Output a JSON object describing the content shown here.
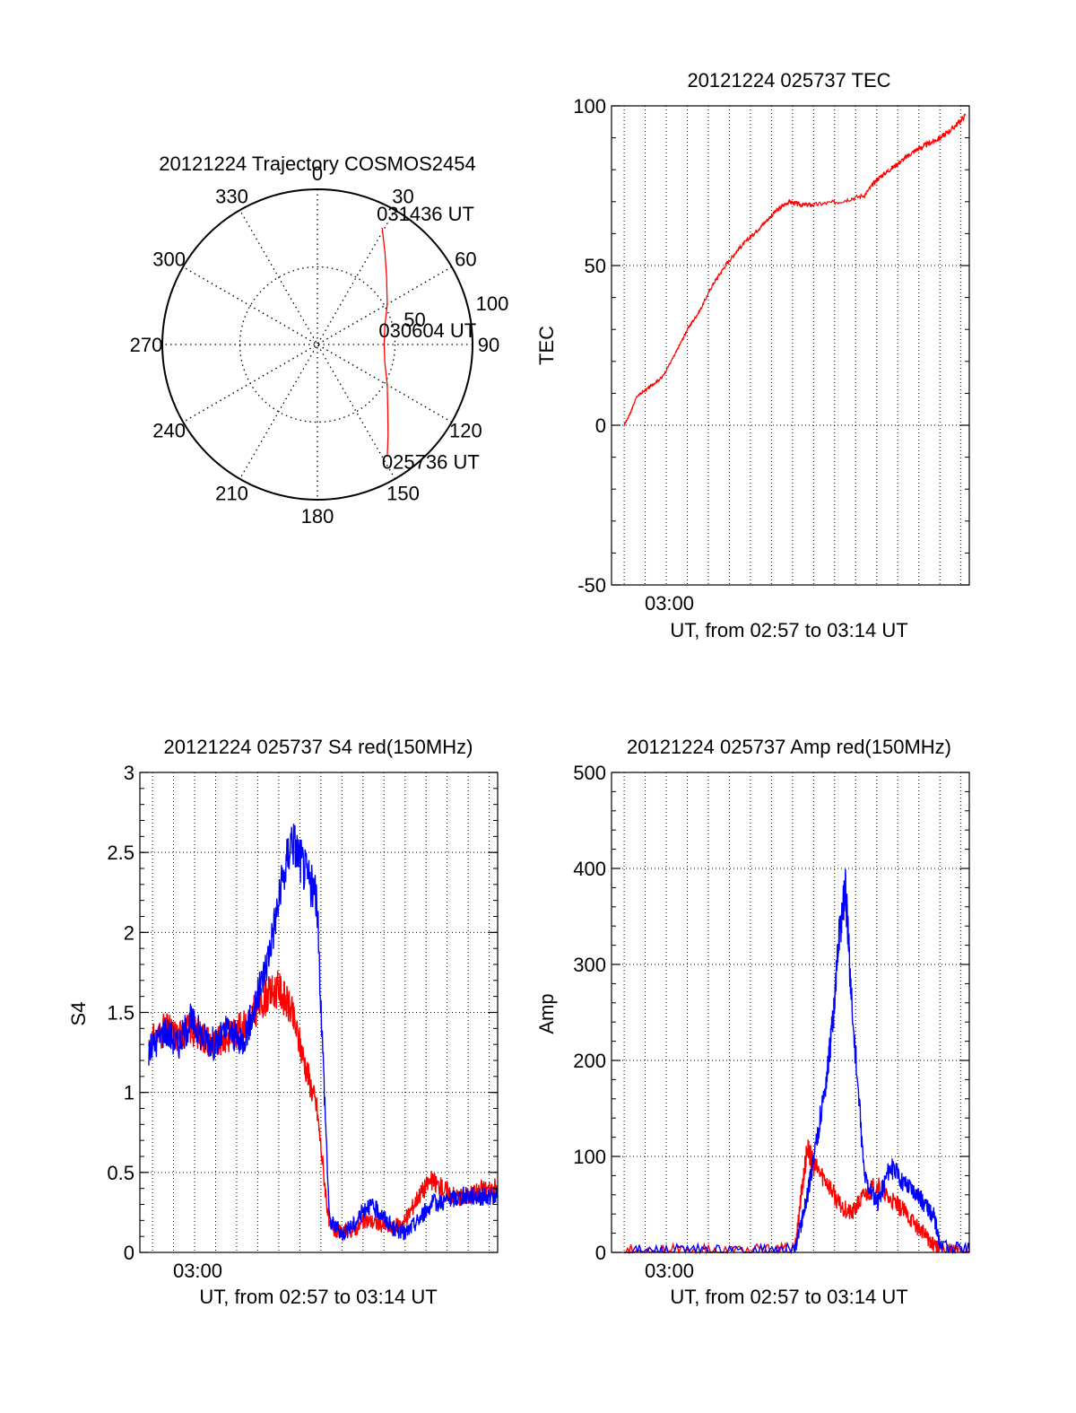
{
  "chart_data": [
    {
      "type": "polar-trajectory",
      "title": "20121224 Trajectory COSMOS2454",
      "azimuth_labels": [
        "0",
        "30",
        "60",
        "90",
        "120",
        "150",
        "180",
        "210",
        "240",
        "270",
        "300",
        "330"
      ],
      "azimuth_values": [
        0,
        30,
        60,
        90,
        120,
        150,
        180,
        210,
        240,
        270,
        300,
        330
      ],
      "radial_labels": [
        "50",
        "100"
      ],
      "radial_values": [
        50,
        100
      ],
      "radial_max": 100,
      "series": [
        {
          "color": "#ff0000",
          "points": [
            {
              "az": 148,
              "r": 85
            },
            {
              "az": 142,
              "r": 74
            },
            {
              "az": 133,
              "r": 62
            },
            {
              "az": 120,
              "r": 52
            },
            {
              "az": 105,
              "r": 45
            },
            {
              "az": 90,
              "r": 43
            },
            {
              "az": 75,
              "r": 45
            },
            {
              "az": 60,
              "r": 52
            },
            {
              "az": 45,
              "r": 63
            },
            {
              "az": 36,
              "r": 74
            },
            {
              "az": 29,
              "r": 86
            }
          ]
        }
      ],
      "annotations": [
        {
          "text": "031436 UT",
          "az": 29,
          "r": 86
        },
        {
          "text": "030604 UT",
          "az": 90,
          "r": 43
        },
        {
          "text": "025736 UT",
          "az": 148,
          "r": 85
        }
      ]
    },
    {
      "type": "line",
      "title": "20121224 025737 TEC",
      "xlabel": "UT, from 02:57 to 03:14 UT",
      "ylabel": "TEC",
      "xlim": [
        2.95,
        3.233
      ],
      "ylim": [
        -50,
        100
      ],
      "yticks": [
        -50,
        0,
        50,
        100
      ],
      "ytick_labels": [
        "-50",
        "0",
        "50",
        "100"
      ],
      "xticks": [
        3.0
      ],
      "xtick_labels": [
        "03:00"
      ],
      "grid": true,
      "series": [
        {
          "color": "#ff0000",
          "x": [
            2.96,
            2.965,
            2.97,
            2.98,
            2.99,
            3.0,
            3.01,
            3.02,
            3.03,
            3.04,
            3.05,
            3.06,
            3.07,
            3.08,
            3.09,
            3.1,
            3.11,
            3.13,
            3.15,
            3.16,
            3.17,
            3.18,
            3.19,
            3.2,
            3.21,
            3.22,
            3.23
          ],
          "y": [
            0,
            4,
            9,
            12,
            15,
            22,
            30,
            36,
            44,
            50,
            55,
            59,
            63,
            67,
            70,
            69,
            69,
            70,
            72,
            77,
            80,
            83,
            86,
            88,
            90,
            93,
            97
          ]
        }
      ]
    },
    {
      "type": "line",
      "title": "20121224 025737 S4 red(150MHz)",
      "xlabel": "UT, from 02:57 to 03:14 UT",
      "ylabel": "S4",
      "xlim": [
        2.95,
        3.233
      ],
      "ylim": [
        0,
        3
      ],
      "yticks": [
        0,
        0.5,
        1,
        1.5,
        2,
        2.5,
        3
      ],
      "ytick_labels": [
        "0",
        "0.5",
        "1",
        "1.5",
        "2",
        "2.5",
        "3"
      ],
      "xticks": [
        3.0
      ],
      "xtick_labels": [
        "03:00"
      ],
      "grid": true,
      "series": [
        {
          "color": "#ff0000",
          "x": [
            2.957,
            2.97,
            2.98,
            2.99,
            3.0,
            3.01,
            3.02,
            3.03,
            3.04,
            3.05,
            3.06,
            3.07,
            3.08,
            3.09,
            3.1,
            3.11,
            3.12,
            3.13,
            3.14,
            3.15,
            3.16,
            3.17,
            3.18,
            3.19,
            3.2,
            3.21,
            3.22,
            3.233
          ],
          "y": [
            1.3,
            1.4,
            1.35,
            1.4,
            1.35,
            1.3,
            1.35,
            1.4,
            1.5,
            1.6,
            1.65,
            1.5,
            1.2,
            0.9,
            0.15,
            0.12,
            0.15,
            0.2,
            0.18,
            0.15,
            0.2,
            0.35,
            0.45,
            0.4,
            0.35,
            0.35,
            0.4,
            0.4
          ]
        },
        {
          "color": "#0000ff",
          "x": [
            2.957,
            2.97,
            2.98,
            2.99,
            3.0,
            3.01,
            3.02,
            3.03,
            3.04,
            3.05,
            3.06,
            3.07,
            3.08,
            3.09,
            3.1,
            3.11,
            3.12,
            3.13,
            3.14,
            3.15,
            3.16,
            3.17,
            3.18,
            3.19,
            3.2,
            3.21,
            3.22,
            3.233
          ],
          "y": [
            1.25,
            1.4,
            1.3,
            1.45,
            1.35,
            1.3,
            1.4,
            1.3,
            1.5,
            1.8,
            2.2,
            2.6,
            2.4,
            2.2,
            0.2,
            0.12,
            0.18,
            0.3,
            0.25,
            0.15,
            0.12,
            0.2,
            0.3,
            0.32,
            0.34,
            0.36,
            0.35,
            0.35
          ]
        }
      ]
    },
    {
      "type": "line",
      "title": "20121224 025737 Amp red(150MHz)",
      "xlabel": "UT, from 02:57 to 03:14 UT",
      "ylabel": "Amp",
      "xlim": [
        2.95,
        3.233
      ],
      "ylim": [
        0,
        500
      ],
      "yticks": [
        0,
        100,
        200,
        300,
        400,
        500
      ],
      "ytick_labels": [
        "0",
        "100",
        "200",
        "300",
        "400",
        "500"
      ],
      "xticks": [
        3.0
      ],
      "xtick_labels": [
        "03:00"
      ],
      "grid": true,
      "series": [
        {
          "color": "#ff0000",
          "x": [
            2.96,
            3.0,
            3.05,
            3.095,
            3.1,
            3.105,
            3.11,
            3.12,
            3.13,
            3.14,
            3.15,
            3.16,
            3.17,
            3.18,
            3.19,
            3.2,
            3.205,
            3.21,
            3.233
          ],
          "y": [
            1,
            1,
            1,
            2,
            60,
            110,
            90,
            75,
            50,
            40,
            60,
            70,
            55,
            45,
            30,
            15,
            8,
            3,
            2
          ]
        },
        {
          "color": "#0000ff",
          "x": [
            2.96,
            3.0,
            3.05,
            3.095,
            3.1,
            3.105,
            3.11,
            3.12,
            3.125,
            3.13,
            3.135,
            3.14,
            3.15,
            3.16,
            3.17,
            3.18,
            3.19,
            3.2,
            3.205,
            3.21,
            3.233
          ],
          "y": [
            1,
            1,
            1,
            2,
            30,
            60,
            100,
            180,
            240,
            330,
            380,
            260,
            80,
            50,
            90,
            75,
            65,
            45,
            40,
            5,
            3
          ]
        }
      ]
    }
  ]
}
